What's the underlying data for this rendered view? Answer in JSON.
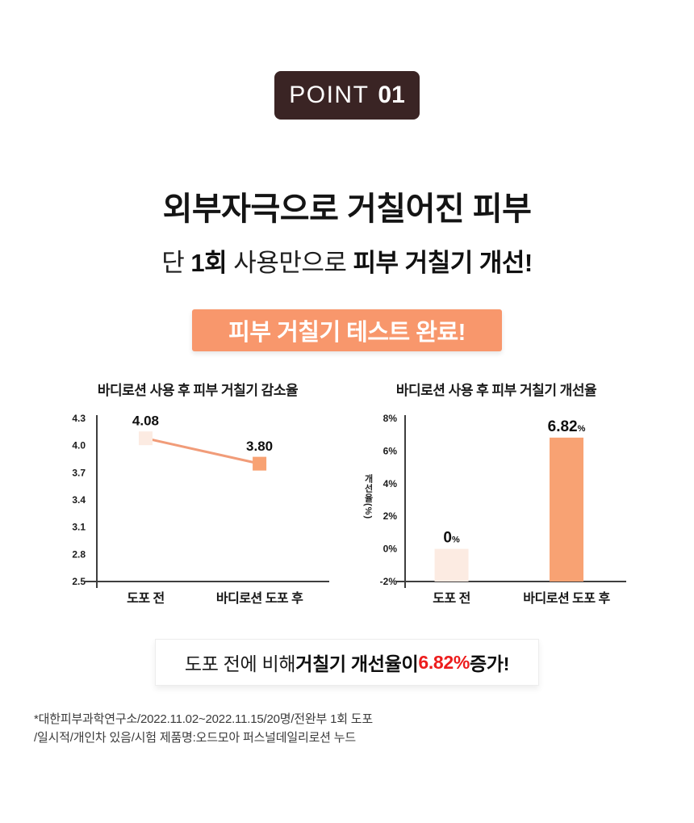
{
  "badge": {
    "prefix": "POINT",
    "number": "01"
  },
  "headline": "외부자극으로 거칠어진 피부",
  "subline": {
    "part1": "단 ",
    "bold1": "1회",
    "part2": " 사용만으로 ",
    "bold2": "피부 거칠기 개선!"
  },
  "banner_text": "피부 거칠기 테스트 완료!",
  "summary": {
    "part1": "도포 전에 비해 ",
    "bold1": "거칠기 개선율이 ",
    "red": "6.82%",
    "bold2": " 증가!"
  },
  "footnote": {
    "line1": "*대한피부과학연구소/2022.11.02~2022.11.15/20명/전완부 1회 도포",
    "line2": "/일시적/개인차 있음/시험 제품명:오드모아 퍼스널데일리로션 누드"
  },
  "colors": {
    "badge_bg": "#3a2424",
    "banner_bg": "#f8976c",
    "accent_light": "#fcebe2",
    "accent": "#f8a273",
    "line": "#f19c79",
    "red": "#f40f0f",
    "summary_red": "#ed1c1c",
    "axis": "#3e3e3e"
  },
  "chart_data": [
    {
      "type": "line",
      "title": "바디로션 사용 후 피부 거칠기 감소율",
      "categories": [
        "도포 전",
        "바디로션 도포 후"
      ],
      "values": [
        4.08,
        3.8
      ],
      "labels": [
        "4.08",
        "3.80"
      ],
      "ylim": [
        2.5,
        4.3
      ],
      "yticks": [
        "4.3",
        "4.0",
        "3.7",
        "3.4",
        "3.1",
        "2.8",
        "2.5"
      ],
      "xlabel": "",
      "ylabel": "",
      "grid": false,
      "legend": "none",
      "highlight_category_index": 1
    },
    {
      "type": "bar",
      "title": "바디로션 사용 후 피부 거칠기 개선율",
      "categories": [
        "도포 전",
        "바디로션 도포 후"
      ],
      "values": [
        0,
        6.82
      ],
      "labels": [
        {
          "value": "0",
          "suffix": "%"
        },
        {
          "value": "6.82",
          "suffix": "%"
        }
      ],
      "ylim": [
        -2,
        8
      ],
      "yticks": [
        "8%",
        "6%",
        "4%",
        "2%",
        "0%",
        "-2%"
      ],
      "xlabel": "",
      "ylabel": "개선율(%)",
      "grid": false,
      "legend": "none",
      "baseline": -2,
      "highlight_category_index": 1
    }
  ]
}
